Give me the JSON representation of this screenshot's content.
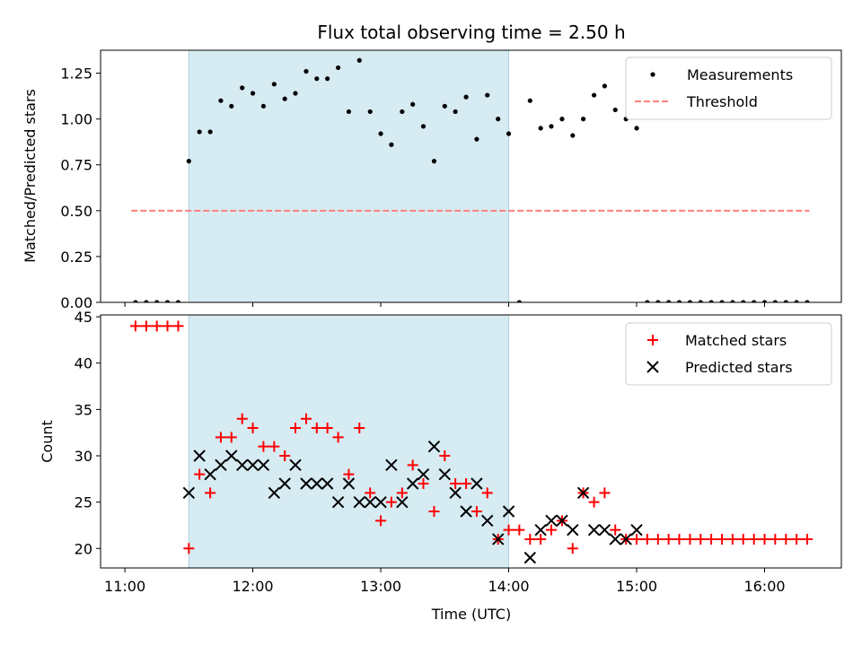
{
  "chart_data": {
    "type": "scatter",
    "title": "Flux total observing time = 2.50 h",
    "xlabel": "Time (UTC)",
    "x_ticks": [
      "11:00",
      "12:00",
      "13:00",
      "14:00",
      "15:00",
      "16:00"
    ],
    "x_range_hours": [
      10.81,
      16.6
    ],
    "shaded_interval_hours": [
      11.5,
      14.0
    ],
    "shade_color": "#add8e6",
    "panels": [
      {
        "id": "ratio",
        "ylabel": "Matched/Predicted stars",
        "ylim": [
          0,
          1.375
        ],
        "y_ticks": [
          "0.00",
          "0.25",
          "0.50",
          "0.75",
          "1.00",
          "1.25"
        ],
        "series": [
          {
            "name": "Measurements",
            "marker": "dot",
            "color": "#000000",
            "x": [
              11.083,
              11.167,
              11.25,
              11.333,
              11.417,
              11.5,
              11.583,
              11.667,
              11.75,
              11.833,
              11.917,
              12.0,
              12.083,
              12.167,
              12.25,
              12.333,
              12.417,
              12.5,
              12.583,
              12.667,
              12.75,
              12.833,
              12.917,
              13.0,
              13.083,
              13.167,
              13.25,
              13.333,
              13.417,
              13.5,
              13.583,
              13.667,
              13.75,
              13.833,
              13.917,
              14.0,
              14.083,
              14.167,
              14.25,
              14.333,
              14.417,
              14.5,
              14.583,
              14.667,
              14.75,
              14.833,
              14.917,
              15.0,
              15.083,
              15.167,
              15.25,
              15.333,
              15.417,
              15.5,
              15.583,
              15.667,
              15.75,
              15.833,
              15.917,
              16.0,
              16.083,
              16.167,
              16.25,
              16.333
            ],
            "y": [
              0,
              0,
              0,
              0,
              0,
              0.77,
              0.93,
              0.93,
              1.1,
              1.07,
              1.17,
              1.14,
              1.07,
              1.19,
              1.11,
              1.14,
              1.26,
              1.22,
              1.22,
              1.28,
              1.04,
              1.32,
              1.04,
              0.92,
              0.86,
              1.04,
              1.08,
              0.96,
              0.77,
              1.07,
              1.04,
              1.12,
              0.89,
              1.13,
              1.0,
              0.92,
              0,
              1.1,
              0.95,
              0.96,
              1.0,
              0.91,
              1.0,
              1.13,
              1.18,
              1.05,
              1.0,
              0.95,
              0,
              0,
              0,
              0,
              0,
              0,
              0,
              0,
              0,
              0,
              0,
              0,
              0,
              0,
              0,
              0
            ]
          },
          {
            "name": "Threshold",
            "marker": "dashed-line",
            "color": "#ff7f7f",
            "x": [
              11.05,
              16.35
            ],
            "y": [
              0.5,
              0.5
            ]
          }
        ]
      },
      {
        "id": "counts",
        "ylabel": "Count",
        "ylim": [
          17.9,
          45.2
        ],
        "y_ticks": [
          "20",
          "25",
          "30",
          "35",
          "40",
          "45"
        ],
        "series": [
          {
            "name": "Matched stars",
            "marker": "plus",
            "color": "#ff0000",
            "x": [
              11.083,
              11.167,
              11.25,
              11.333,
              11.417,
              11.5,
              11.583,
              11.667,
              11.75,
              11.833,
              11.917,
              12.0,
              12.083,
              12.167,
              12.25,
              12.333,
              12.417,
              12.5,
              12.583,
              12.667,
              12.75,
              12.833,
              12.917,
              13.0,
              13.083,
              13.167,
              13.25,
              13.333,
              13.417,
              13.5,
              13.583,
              13.667,
              13.75,
              13.833,
              13.917,
              14.0,
              14.083,
              14.167,
              14.25,
              14.333,
              14.417,
              14.5,
              14.583,
              14.667,
              14.75,
              14.833,
              14.917,
              15.0,
              15.083,
              15.167,
              15.25,
              15.333,
              15.417,
              15.5,
              15.583,
              15.667,
              15.75,
              15.833,
              15.917,
              16.0,
              16.083,
              16.167,
              16.25,
              16.333
            ],
            "y": [
              44,
              44,
              44,
              44,
              44,
              20,
              28,
              26,
              32,
              32,
              34,
              33,
              31,
              31,
              30,
              33,
              34,
              33,
              33,
              32,
              28,
              33,
              26,
              23,
              25,
              26,
              29,
              27,
              24,
              30,
              27,
              27,
              24,
              26,
              21,
              22,
              22,
              21,
              21,
              22,
              23,
              20,
              26,
              25,
              26,
              22,
              21,
              21,
              21,
              21,
              21,
              21,
              21,
              21,
              21,
              21,
              21,
              21,
              21,
              21,
              21,
              21,
              21,
              21
            ]
          },
          {
            "name": "Predicted stars",
            "marker": "x",
            "color": "#000000",
            "x": [
              11.5,
              11.583,
              11.667,
              11.75,
              11.833,
              11.917,
              12.0,
              12.083,
              12.167,
              12.25,
              12.333,
              12.417,
              12.5,
              12.583,
              12.667,
              12.75,
              12.833,
              12.917,
              13.0,
              13.083,
              13.167,
              13.25,
              13.333,
              13.417,
              13.5,
              13.583,
              13.667,
              13.75,
              13.833,
              13.917,
              14.0,
              14.167,
              14.25,
              14.333,
              14.417,
              14.5,
              14.583,
              14.667,
              14.75,
              14.833,
              14.917,
              15.0
            ],
            "y": [
              26,
              30,
              28,
              29,
              30,
              29,
              29,
              29,
              26,
              27,
              29,
              27,
              27,
              27,
              25,
              27,
              25,
              25,
              25,
              29,
              25,
              27,
              28,
              31,
              28,
              26,
              24,
              27,
              23,
              21,
              24,
              19,
              22,
              23,
              23,
              22,
              26,
              22,
              22,
              21,
              21,
              22
            ]
          }
        ]
      }
    ]
  }
}
